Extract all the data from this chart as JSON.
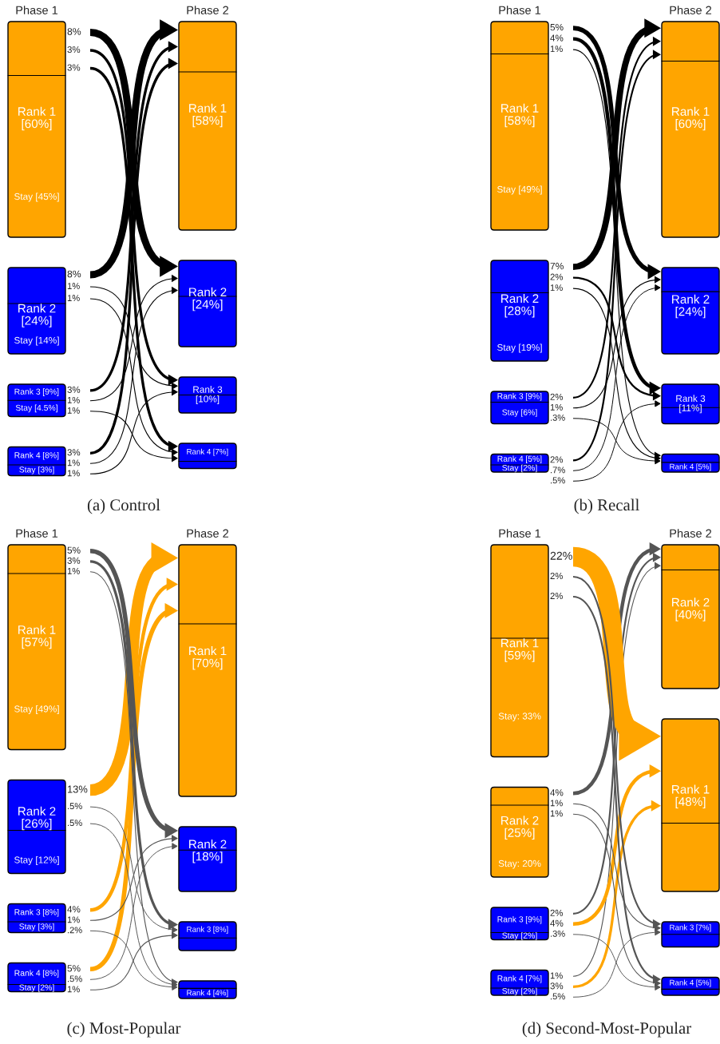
{
  "chart_data": [
    {
      "type": "other",
      "title": "(a) Control",
      "categories": [
        "Rank 1",
        "Rank 2",
        "Rank 3",
        "Rank 4"
      ],
      "y2_categories": [
        "Rank 1",
        "Rank 2",
        "Rank 3",
        "Rank 4"
      ],
      "series": [
        {
          "name": "Phase 1",
          "values": [
            60,
            24,
            9,
            8
          ],
          "value_labels": [
            "[60%]",
            "[24%]",
            "[9%]",
            "[8%]"
          ],
          "colors": [
            "#ffa500",
            "#0000ff",
            "#0000ff",
            "#0000ff"
          ]
        },
        {
          "name": "Phase 2",
          "values": [
            58,
            24,
            10,
            7
          ],
          "value_labels": [
            "[58%]",
            "[24%]",
            "[10%]",
            "[7%]"
          ],
          "colors": [
            "#ffa500",
            "#0000ff",
            "#0000ff",
            "#0000ff"
          ]
        },
        {
          "values": [
            45,
            14,
            4.5,
            3
          ],
          "value_labels": [
            "Stay [45%]",
            "Stay [14%]",
            "Stay [4.5%]",
            "Stay [3%]"
          ]
        },
        {
          "color": "#000000",
          "values": [
            null,
            8,
            3,
            3
          ],
          "value_labels": [
            null,
            "8%",
            "3%",
            "3%"
          ]
        },
        {
          "color": "#000000",
          "values": [
            8,
            null,
            1,
            1
          ],
          "value_labels": [
            "8%",
            null,
            "1%",
            "1%"
          ]
        },
        {
          "color": "#000000",
          "values": [
            3,
            1,
            null,
            1
          ],
          "value_labels": [
            "3%",
            "1%",
            null,
            "1%"
          ]
        },
        {
          "color": "#000000",
          "values": [
            3,
            1,
            1,
            null
          ],
          "value_labels": [
            "3%",
            "1%",
            "1%",
            null
          ]
        }
      ]
    },
    {
      "type": "other",
      "title": "(b) Recall",
      "categories": [
        "Rank 1",
        "Rank 2",
        "Rank 3",
        "Rank 4"
      ],
      "y2_categories": [
        "Rank 1",
        "Rank 2",
        "Rank 3",
        "Rank 4"
      ],
      "series": [
        {
          "name": "Phase 1",
          "values": [
            58,
            28,
            9,
            5
          ],
          "value_labels": [
            "[58%]",
            "[28%]",
            "[9%]",
            "[5%]"
          ],
          "colors": [
            "#ffa500",
            "#0000ff",
            "#0000ff",
            "#0000ff"
          ]
        },
        {
          "name": "Phase 2",
          "values": [
            60,
            24,
            11,
            5
          ],
          "value_labels": [
            "[60%]",
            "[24%]",
            "[11%]",
            "[5%]"
          ],
          "colors": [
            "#ffa500",
            "#0000ff",
            "#0000ff",
            "#0000ff"
          ]
        },
        {
          "values": [
            49,
            19,
            6,
            2
          ],
          "value_labels": [
            "Stay [49%]",
            "Stay [19%]",
            "Stay [6%]",
            "Stay [2%]"
          ]
        },
        {
          "color": "#000000",
          "values": [
            null,
            7,
            2,
            2
          ],
          "value_labels": [
            null,
            "7%",
            "2%",
            "2%"
          ]
        },
        {
          "color": "#000000",
          "values": [
            5,
            null,
            1,
            0.7
          ],
          "value_labels": [
            "5%",
            null,
            "1%",
            ".7%"
          ]
        },
        {
          "color": "#000000",
          "values": [
            4,
            2,
            null,
            0.5
          ],
          "value_labels": [
            "4%",
            "2%",
            null,
            ".5%"
          ]
        },
        {
          "color": "#000000",
          "values": [
            1,
            1,
            0.3,
            null
          ],
          "value_labels": [
            "1%",
            "1%",
            ".3%",
            null
          ]
        }
      ]
    },
    {
      "type": "other",
      "title": "(c) Most-Popular",
      "categories": [
        "Rank 1",
        "Rank 2",
        "Rank 3",
        "Rank 4"
      ],
      "y2_categories": [
        "Rank 1",
        "Rank 2",
        "Rank 3",
        "Rank 4"
      ],
      "series": [
        {
          "name": "Phase 1",
          "values": [
            57,
            26,
            8,
            8
          ],
          "value_labels": [
            "[57%]",
            "[26%]",
            "[8%]",
            "[8%]"
          ],
          "colors": [
            "#ffa500",
            "#0000ff",
            "#0000ff",
            "#0000ff"
          ]
        },
        {
          "name": "Phase 2",
          "values": [
            70,
            18,
            8,
            4
          ],
          "value_labels": [
            "[70%]",
            "[18%]",
            "[8%]",
            "[4%]"
          ],
          "colors": [
            "#ffa500",
            "#0000ff",
            "#0000ff",
            "#0000ff"
          ]
        },
        {
          "values": [
            49,
            12,
            3,
            2
          ],
          "value_labels": [
            "Stay [49%]",
            "Stay [12%]",
            "Stay [3%]",
            "Stay [2%]"
          ]
        },
        {
          "color": "#ffa500",
          "values": [
            null,
            13,
            4,
            5
          ],
          "value_labels": [
            null,
            "13%",
            "4%",
            "5%"
          ]
        },
        {
          "color": "#555555",
          "values": [
            5,
            null,
            1,
            0.5
          ],
          "value_labels": [
            "5%",
            null,
            "1%",
            ".5%"
          ]
        },
        {
          "color": "#555555",
          "values": [
            3,
            0.5,
            null,
            1
          ],
          "value_labels": [
            "3%",
            ".5%",
            null,
            "1%"
          ]
        },
        {
          "color": "#555555",
          "values": [
            1,
            0.5,
            0.2,
            null
          ],
          "value_labels": [
            "1%",
            ".5%",
            ".2%",
            null
          ]
        }
      ]
    },
    {
      "type": "other",
      "title": "(d) Second-Most-Popular",
      "categories": [
        "Rank 1",
        "Rank 2",
        "Rank 3",
        "Rank 4"
      ],
      "y2_categories": [
        "Rank 2",
        "Rank 1",
        "Rank 3",
        "Rank 4"
      ],
      "series": [
        {
          "name": "Phase 1",
          "values": [
            59,
            25,
            9,
            7
          ],
          "value_labels": [
            "[59%]",
            "[25%]",
            "[9%]",
            "[7%]"
          ],
          "colors": [
            "#ffa500",
            "#ffa500",
            "#0000ff",
            "#0000ff"
          ]
        },
        {
          "name": "Phase 2",
          "values": [
            40,
            48,
            7,
            5
          ],
          "value_labels": [
            "[40%]",
            "[48%]",
            "[7%]",
            "[5%]"
          ],
          "colors": [
            "#ffa500",
            "#ffa500",
            "#0000ff",
            "#0000ff"
          ]
        },
        {
          "values": [
            33,
            20,
            2,
            2
          ],
          "value_labels": [
            "Stay: 33%",
            "Stay: 20%",
            "Stay [2%]",
            "Stay [2%]"
          ]
        },
        {
          "color": "#555555",
          "values": [
            null,
            4,
            2,
            1
          ],
          "value_labels": [
            null,
            "4%",
            "2%",
            "1%"
          ]
        },
        {
          "color": "#ffa500",
          "values": [
            22,
            null,
            4,
            3
          ],
          "value_labels": [
            "22%",
            null,
            "4%",
            "3%"
          ]
        },
        {
          "color": "#555555",
          "values": [
            2,
            1,
            null,
            0.5
          ],
          "value_labels": [
            "2%",
            "1%",
            null,
            ".5%"
          ]
        },
        {
          "color": "#555555",
          "values": [
            2,
            1,
            0.3,
            null
          ],
          "value_labels": [
            "2%",
            "1%",
            ".3%",
            null
          ]
        }
      ]
    }
  ]
}
